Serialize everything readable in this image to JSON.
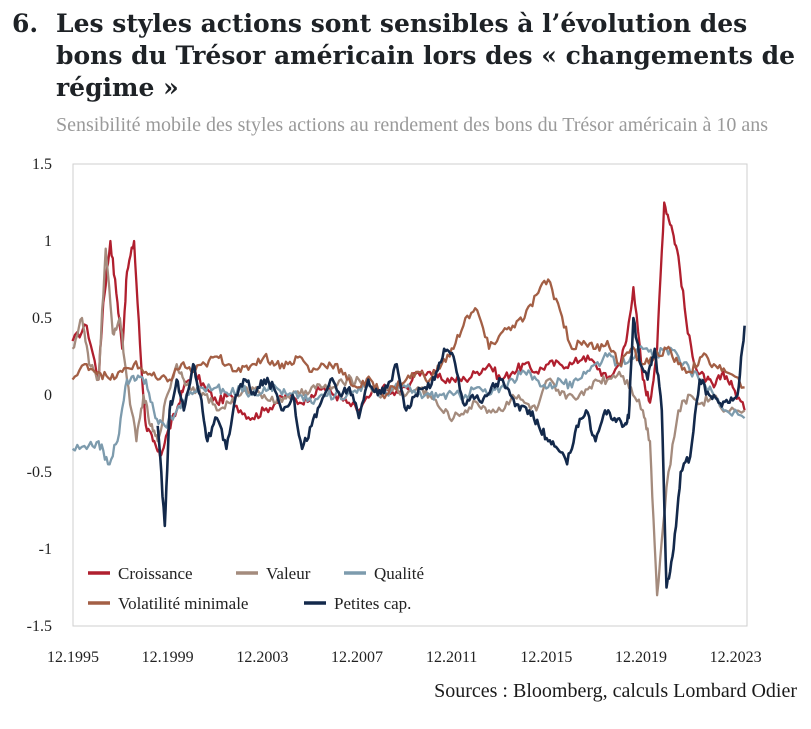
{
  "figure": {
    "number": "6.",
    "title": "Les styles actions sont sensibles à l’évolution des bons du Trésor américain lors des « changements de régime »",
    "subtitle": "Sensibilité mobile des styles actions au rendement des bons du Trésor américain à 10 ans",
    "sources": "Sources : Bloomberg, calculs Lombard Odier"
  },
  "chart_data": {
    "type": "line",
    "title": "",
    "xlabel": "",
    "ylabel": "",
    "ylim": [
      -1.5,
      1.5
    ],
    "xlim": [
      1995.92,
      2024.4
    ],
    "y_ticks": [
      1.5,
      1,
      0.5,
      0,
      -0.5,
      -1,
      -1.5
    ],
    "y_tick_labels": [
      "1.5",
      "1",
      "0.5",
      "0",
      "-0.5",
      "-1",
      "-1.5"
    ],
    "x_ticks": [
      1995.92,
      1999.92,
      2003.92,
      2007.92,
      2011.92,
      2015.92,
      2019.92,
      2023.92
    ],
    "x_tick_labels": [
      "12.1995",
      "12.1999",
      "12.2003",
      "12.2007",
      "12.2011",
      "12.2015",
      "12.2019",
      "12.2023"
    ],
    "grid": false,
    "legend_position": "bottom-left",
    "series": [
      {
        "name": "Croissance",
        "color": "#b01f2e",
        "x": [
          1995.9,
          1996.5,
          1997.0,
          1997.2,
          1997.5,
          1997.8,
          1998.0,
          1998.2,
          1998.5,
          1998.8,
          1999.0,
          1999.3,
          1999.6,
          1999.9,
          2000.3,
          2000.6,
          2001.0,
          2001.5,
          2002.0,
          2002.5,
          2003.0,
          2003.5,
          2004.0,
          2004.5,
          2005.0,
          2005.5,
          2006.0,
          2006.5,
          2007.0,
          2007.5,
          2008.0,
          2008.5,
          2009.0,
          2009.5,
          2010.0,
          2010.5,
          2011.0,
          2011.5,
          2012.0,
          2012.5,
          2013.0,
          2013.5,
          2014.0,
          2014.5,
          2015.0,
          2015.5,
          2016.0,
          2016.5,
          2017.0,
          2017.5,
          2018.0,
          2018.5,
          2019.0,
          2019.3,
          2019.6,
          2020.0,
          2020.3,
          2020.6,
          2020.9,
          2021.2,
          2021.5,
          2021.9,
          2022.3,
          2022.7,
          2023.0,
          2023.4,
          2023.8,
          2024.3
        ],
        "values": [
          0.35,
          0.45,
          0.1,
          0.6,
          1.0,
          0.6,
          0.3,
          0.8,
          1.0,
          0.2,
          -0.2,
          -0.3,
          -0.4,
          -0.25,
          -0.1,
          0.05,
          0.15,
          0.05,
          -0.05,
          0.0,
          -0.1,
          -0.15,
          -0.1,
          -0.05,
          0.0,
          -0.05,
          0.0,
          0.05,
          0.0,
          -0.05,
          -0.1,
          0.0,
          0.05,
          0.0,
          0.05,
          0.15,
          0.15,
          0.1,
          0.1,
          0.1,
          0.15,
          0.2,
          0.1,
          0.15,
          0.2,
          0.15,
          0.2,
          0.2,
          0.2,
          0.25,
          0.2,
          0.1,
          0.2,
          0.35,
          0.7,
          0.1,
          -0.05,
          0.3,
          1.25,
          1.1,
          0.9,
          0.4,
          0.15,
          0.1,
          0.05,
          0.15,
          0.05,
          -0.1
        ]
      },
      {
        "name": "Valeur",
        "color": "#a48b7d",
        "x": [
          1995.9,
          1996.3,
          1996.6,
          1997.0,
          1997.3,
          1997.6,
          1997.9,
          1998.2,
          1998.6,
          1998.9,
          1999.2,
          1999.5,
          1999.9,
          2000.3,
          2000.6,
          2001.0,
          2001.5,
          2002.0,
          2002.5,
          2003.0,
          2003.5,
          2004.0,
          2004.5,
          2005.0,
          2005.5,
          2006.0,
          2006.5,
          2007.0,
          2007.5,
          2008.0,
          2008.5,
          2009.0,
          2009.5,
          2010.0,
          2010.5,
          2011.0,
          2011.5,
          2012.0,
          2012.5,
          2013.0,
          2013.5,
          2014.0,
          2014.5,
          2015.0,
          2015.5,
          2016.0,
          2016.5,
          2017.0,
          2017.5,
          2018.0,
          2018.5,
          2019.0,
          2019.5,
          2020.0,
          2020.3,
          2020.6,
          2021.0,
          2021.5,
          2022.0,
          2022.5,
          2023.0,
          2023.5,
          2024.3
        ],
        "values": [
          0.3,
          0.5,
          0.2,
          0.1,
          0.95,
          0.4,
          0.5,
          0.1,
          -0.3,
          0.0,
          -0.2,
          -0.3,
          0.0,
          0.2,
          0.1,
          0.05,
          0.0,
          -0.1,
          -0.05,
          0.0,
          0.05,
          0.0,
          -0.05,
          0.0,
          0.0,
          0.05,
          0.05,
          0.05,
          0.1,
          0.1,
          0.05,
          0.0,
          0.05,
          0.0,
          0.05,
          0.0,
          -0.1,
          -0.15,
          -0.1,
          -0.05,
          -0.1,
          -0.1,
          0.0,
          -0.05,
          -0.1,
          0.1,
          0.0,
          0.0,
          0.0,
          0.1,
          0.1,
          0.15,
          0.05,
          -0.1,
          -0.3,
          -1.3,
          -0.6,
          -0.1,
          0.0,
          -0.05,
          0.0,
          -0.1,
          -0.1
        ]
      },
      {
        "name": "Qualité",
        "color": "#7d9bad",
        "x": [
          1995.9,
          1996.5,
          1997.0,
          1997.4,
          1997.8,
          1998.2,
          1998.6,
          1999.0,
          1999.4,
          1999.8,
          2000.3,
          2000.8,
          2001.3,
          2002.0,
          2002.5,
          2003.0,
          2003.5,
          2004.0,
          2004.5,
          2005.0,
          2005.5,
          2006.0,
          2006.5,
          2007.0,
          2007.5,
          2008.0,
          2008.5,
          2009.0,
          2009.5,
          2010.0,
          2010.5,
          2011.0,
          2011.5,
          2012.0,
          2012.5,
          2013.0,
          2013.5,
          2014.0,
          2014.5,
          2015.0,
          2015.5,
          2016.0,
          2016.5,
          2017.0,
          2017.5,
          2018.0,
          2018.5,
          2019.0,
          2019.5,
          2020.0,
          2020.5,
          2021.0,
          2021.5,
          2022.0,
          2022.5,
          2023.0,
          2023.5,
          2024.3
        ],
        "values": [
          -0.35,
          -0.35,
          -0.3,
          -0.45,
          -0.3,
          0.1,
          0.1,
          0.1,
          -0.15,
          -0.2,
          -0.1,
          0.0,
          0.05,
          0.05,
          0.0,
          0.05,
          0.0,
          0.05,
          0.05,
          0.0,
          0.0,
          -0.05,
          0.0,
          0.0,
          0.0,
          0.05,
          0.05,
          0.0,
          0.05,
          0.05,
          0.0,
          0.0,
          0.0,
          0.0,
          0.0,
          0.05,
          0.0,
          0.05,
          0.1,
          0.15,
          0.1,
          0.05,
          0.1,
          0.05,
          0.15,
          0.2,
          0.25,
          0.2,
          0.25,
          0.3,
          0.25,
          0.3,
          0.25,
          0.15,
          0.1,
          0.0,
          -0.1,
          -0.15
        ]
      },
      {
        "name": "Volatilité minimale",
        "color": "#a35f45",
        "x": [
          1995.9,
          1996.5,
          1997.0,
          1997.5,
          1998.0,
          1998.5,
          1999.0,
          1999.5,
          2000.0,
          2000.5,
          2001.0,
          2001.5,
          2002.0,
          2002.5,
          2003.0,
          2003.5,
          2004.0,
          2004.5,
          2005.0,
          2005.5,
          2006.0,
          2006.5,
          2007.0,
          2007.5,
          2008.0,
          2008.5,
          2009.0,
          2009.5,
          2010.0,
          2010.5,
          2011.0,
          2011.5,
          2012.0,
          2012.5,
          2013.0,
          2013.5,
          2014.0,
          2014.5,
          2015.0,
          2015.5,
          2016.0,
          2016.5,
          2017.0,
          2017.5,
          2018.0,
          2018.5,
          2019.0,
          2019.5,
          2020.0,
          2020.5,
          2021.0,
          2021.5,
          2022.0,
          2022.5,
          2023.0,
          2023.5,
          2024.3
        ],
        "values": [
          0.1,
          0.2,
          0.15,
          0.1,
          0.15,
          0.2,
          0.15,
          0.1,
          0.1,
          0.2,
          0.15,
          0.2,
          0.25,
          0.2,
          0.15,
          0.2,
          0.25,
          0.2,
          0.2,
          0.25,
          0.15,
          0.2,
          0.2,
          0.1,
          0.05,
          0.1,
          0.0,
          0.05,
          0.1,
          0.15,
          0.1,
          0.2,
          0.3,
          0.5,
          0.55,
          0.3,
          0.4,
          0.45,
          0.5,
          0.65,
          0.75,
          0.55,
          0.3,
          0.35,
          0.3,
          0.35,
          0.2,
          0.3,
          0.2,
          0.25,
          0.3,
          0.2,
          0.15,
          0.25,
          0.2,
          0.15,
          0.05
        ]
      },
      {
        "name": "Petites cap.",
        "color": "#13294b",
        "x": [
          1995.9,
          1997.0,
          1998.0,
          1999.0,
          1999.5,
          1999.8,
          2000.0,
          2000.3,
          2000.6,
          2001.0,
          2001.3,
          2001.6,
          2002.0,
          2002.4,
          2002.8,
          2003.2,
          2003.6,
          2004.0,
          2004.4,
          2004.8,
          2005.2,
          2005.6,
          2006.0,
          2006.4,
          2006.8,
          2007.2,
          2007.6,
          2008.0,
          2008.4,
          2008.8,
          2009.2,
          2009.6,
          2010.0,
          2010.4,
          2010.8,
          2011.2,
          2011.6,
          2012.0,
          2012.4,
          2012.8,
          2013.2,
          2013.6,
          2014.0,
          2014.4,
          2014.8,
          2015.2,
          2015.6,
          2016.0,
          2016.4,
          2016.8,
          2017.2,
          2017.6,
          2018.0,
          2018.4,
          2018.8,
          2019.2,
          2019.4,
          2019.6,
          2019.9,
          2020.2,
          2020.5,
          2020.8,
          2021.0,
          2021.3,
          2021.6,
          2022.0,
          2022.4,
          2022.8,
          2023.2,
          2023.6,
          2024.0,
          2024.3
        ],
        "values": [
          null,
          null,
          null,
          null,
          -0.2,
          -0.85,
          -0.1,
          0.1,
          -0.1,
          0.2,
          0.0,
          -0.3,
          -0.15,
          -0.35,
          0.0,
          0.1,
          0.0,
          0.1,
          0.05,
          -0.1,
          0.0,
          -0.35,
          -0.2,
          -0.05,
          0.1,
          0.0,
          0.05,
          -0.15,
          0.1,
          0.0,
          0.05,
          0.2,
          -0.1,
          0.0,
          0.05,
          0.1,
          0.3,
          0.25,
          -0.05,
          0.0,
          -0.05,
          0.05,
          0.1,
          0.0,
          -0.1,
          -0.1,
          -0.2,
          -0.3,
          -0.35,
          -0.45,
          -0.2,
          -0.1,
          -0.3,
          -0.1,
          -0.15,
          -0.2,
          -0.15,
          0.5,
          0.2,
          0.1,
          0.3,
          -0.1,
          -1.25,
          -1.0,
          -0.5,
          -0.4,
          0.1,
          0.0,
          -0.05,
          -0.05,
          0.0,
          0.45
        ]
      }
    ]
  },
  "legend": {
    "row1": [
      "Croissance",
      "Valeur",
      "Qualité"
    ],
    "row2": [
      "Volatilité minimale",
      "Petites cap."
    ]
  }
}
